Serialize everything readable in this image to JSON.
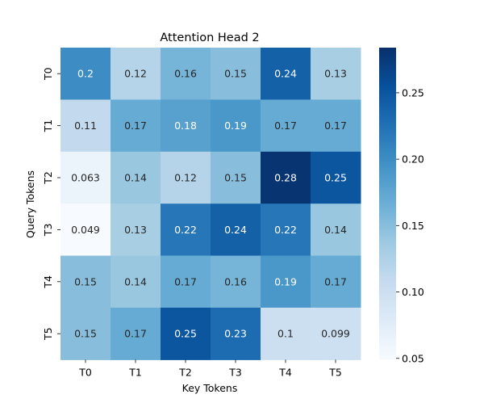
{
  "chart_data": {
    "type": "heatmap",
    "title": "Attention Head 2",
    "xlabel": "Key Tokens",
    "ylabel": "Query Tokens",
    "x_categories": [
      "T0",
      "T1",
      "T2",
      "T3",
      "T4",
      "T5"
    ],
    "y_categories": [
      "T0",
      "T1",
      "T2",
      "T3",
      "T4",
      "T5"
    ],
    "values": [
      [
        0.2,
        0.12,
        0.16,
        0.15,
        0.24,
        0.13
      ],
      [
        0.11,
        0.17,
        0.18,
        0.19,
        0.17,
        0.17
      ],
      [
        0.063,
        0.14,
        0.12,
        0.15,
        0.28,
        0.25
      ],
      [
        0.049,
        0.13,
        0.22,
        0.24,
        0.22,
        0.14
      ],
      [
        0.15,
        0.14,
        0.17,
        0.16,
        0.19,
        0.17
      ],
      [
        0.15,
        0.17,
        0.25,
        0.23,
        0.1,
        0.099
      ]
    ],
    "colormap": "Blues",
    "value_range": [
      0.049,
      0.284
    ],
    "colorbar_ticks": [
      0.05,
      0.1,
      0.15,
      0.2,
      0.25
    ],
    "colorbar_tick_labels": [
      "0.05",
      "0.10",
      "0.15",
      "0.20",
      "0.25"
    ]
  }
}
